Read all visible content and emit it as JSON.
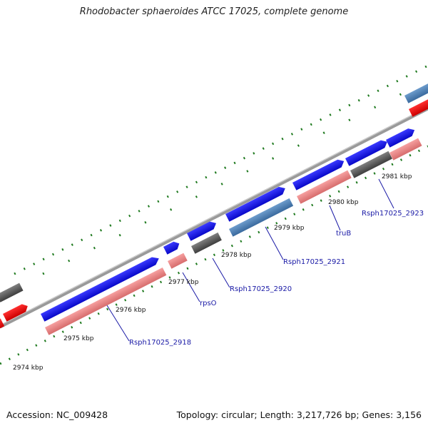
{
  "title": "Rhodobacter sphaeroides ATCC 17025, complete genome",
  "footer": {
    "accession": "Accession: NC_009428",
    "summary": "Topology: circular; Length: 3,217,726 bp; Genes: 3,156"
  },
  "colors": {
    "forward_gene": "#1a1aee",
    "forward_cds_steel": "#4a7fb5",
    "reverse_gene": "#ee1a1a",
    "salmon": "#ef8a8a",
    "gray": "#5e5e5e",
    "backbone": "#8e8e8e",
    "tick_green": "#1f7a1f",
    "label_blue": "#1a1aa6"
  },
  "kbp_labels": [
    "2974 kbp",
    "2975 kbp",
    "2976 kbp",
    "2977 kbp",
    "2978 kbp",
    "2979 kbp",
    "2980 kbp",
    "2981 kbp"
  ],
  "gene_labels": [
    "Rsph17025_2918",
    "rpsO",
    "Rsph17025_2920",
    "Rsph17025_2921",
    "truB",
    "Rsph17025_2923"
  ]
}
